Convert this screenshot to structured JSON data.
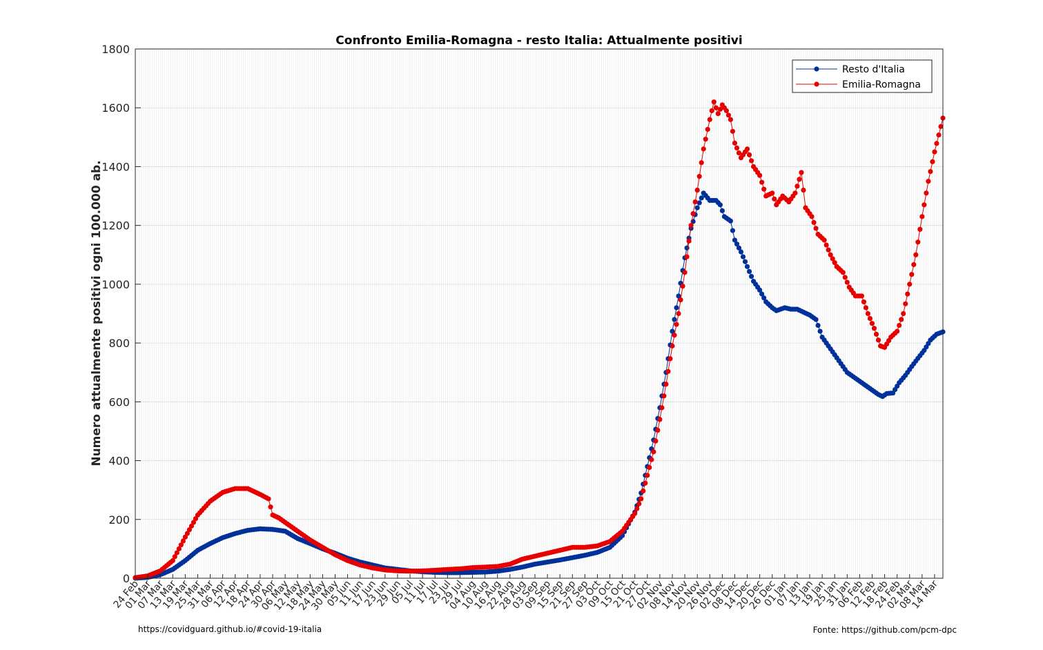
{
  "chart_data": {
    "type": "line",
    "title": "Confronto Emilia-Romagna - resto Italia: Attualmente positivi",
    "xlabel": "",
    "ylabel": "Numero attualmente positivi ogni 100.000 ab.",
    "ylim": [
      0,
      1800
    ],
    "yticks": [
      0,
      200,
      400,
      600,
      800,
      1000,
      1200,
      1400,
      1600,
      1800
    ],
    "grid": true,
    "legend_position": "top-right",
    "x_start_date": "2020-02-24",
    "x_end_date": "2021-03-18",
    "x_tick_labels": [
      "24 Feb",
      "01 Mar",
      "07 Mar",
      "13 Mar",
      "19 Mar",
      "25 Mar",
      "31 Mar",
      "06 Apr",
      "12 Apr",
      "18 Apr",
      "24 Apr",
      "30 Apr",
      "06 May",
      "12 May",
      "18 May",
      "24 May",
      "30 May",
      "05 Jun",
      "11 Jun",
      "17 Jun",
      "23 Jun",
      "29 Jun",
      "05 Jul",
      "11 Jul",
      "17 Jul",
      "23 Jul",
      "29 Jul",
      "04 Aug",
      "10 Aug",
      "16 Aug",
      "22 Aug",
      "28 Aug",
      "03 Sep",
      "09 Sep",
      "15 Sep",
      "21 Sep",
      "27 Sep",
      "03 Oct",
      "09 Oct",
      "15 Oct",
      "21 Oct",
      "27 Oct",
      "02 Nov",
      "08 Nov",
      "14 Nov",
      "20 Nov",
      "26 Nov",
      "02 Dec",
      "08 Dec",
      "14 Dec",
      "20 Dec",
      "26 Dec",
      "01 Jan",
      "07 Jan",
      "13 Jan",
      "19 Jan",
      "25 Jan",
      "31 Jan",
      "06 Feb",
      "12 Feb",
      "18 Feb",
      "24 Feb",
      "02 Mar",
      "08 Mar",
      "14 Mar"
    ],
    "series": [
      {
        "name": "Resto d'Italia",
        "color": "#00309a",
        "points": [
          [
            "2020-02-24",
            0
          ],
          [
            "2020-03-01",
            3
          ],
          [
            "2020-03-07",
            12
          ],
          [
            "2020-03-13",
            30
          ],
          [
            "2020-03-19",
            60
          ],
          [
            "2020-03-25",
            95
          ],
          [
            "2020-03-31",
            118
          ],
          [
            "2020-04-06",
            138
          ],
          [
            "2020-04-12",
            152
          ],
          [
            "2020-04-18",
            163
          ],
          [
            "2020-04-24",
            168
          ],
          [
            "2020-04-30",
            166
          ],
          [
            "2020-05-06",
            160
          ],
          [
            "2020-05-12",
            135
          ],
          [
            "2020-05-18",
            118
          ],
          [
            "2020-05-24",
            100
          ],
          [
            "2020-05-30",
            85
          ],
          [
            "2020-06-05",
            68
          ],
          [
            "2020-06-11",
            55
          ],
          [
            "2020-06-17",
            45
          ],
          [
            "2020-06-23",
            35
          ],
          [
            "2020-06-29",
            30
          ],
          [
            "2020-07-05",
            25
          ],
          [
            "2020-07-11",
            22
          ],
          [
            "2020-07-17",
            20
          ],
          [
            "2020-07-23",
            19
          ],
          [
            "2020-07-29",
            19
          ],
          [
            "2020-08-04",
            20
          ],
          [
            "2020-08-10",
            21
          ],
          [
            "2020-08-16",
            24
          ],
          [
            "2020-08-22",
            30
          ],
          [
            "2020-08-28",
            38
          ],
          [
            "2020-09-03",
            48
          ],
          [
            "2020-09-09",
            55
          ],
          [
            "2020-09-15",
            62
          ],
          [
            "2020-09-21",
            70
          ],
          [
            "2020-09-27",
            78
          ],
          [
            "2020-10-03",
            88
          ],
          [
            "2020-10-09",
            105
          ],
          [
            "2020-10-15",
            145
          ],
          [
            "2020-10-21",
            225
          ],
          [
            "2020-10-24",
            290
          ],
          [
            "2020-10-27",
            380
          ],
          [
            "2020-10-30",
            470
          ],
          [
            "2020-11-02",
            580
          ],
          [
            "2020-11-05",
            700
          ],
          [
            "2020-11-08",
            840
          ],
          [
            "2020-11-11",
            960
          ],
          [
            "2020-11-14",
            1090
          ],
          [
            "2020-11-17",
            1190
          ],
          [
            "2020-11-20",
            1260
          ],
          [
            "2020-11-23",
            1310
          ],
          [
            "2020-11-26",
            1285
          ],
          [
            "2020-11-29",
            1285
          ],
          [
            "2020-12-01",
            1270
          ],
          [
            "2020-12-03",
            1230
          ],
          [
            "2020-12-06",
            1215
          ],
          [
            "2020-12-08",
            1150
          ],
          [
            "2020-12-11",
            1110
          ],
          [
            "2020-12-14",
            1060
          ],
          [
            "2020-12-17",
            1010
          ],
          [
            "2020-12-20",
            980
          ],
          [
            "2020-12-23",
            940
          ],
          [
            "2020-12-26",
            920
          ],
          [
            "2020-12-28",
            910
          ],
          [
            "2021-01-01",
            920
          ],
          [
            "2021-01-04",
            915
          ],
          [
            "2021-01-07",
            915
          ],
          [
            "2021-01-10",
            905
          ],
          [
            "2021-01-13",
            895
          ],
          [
            "2021-01-16",
            880
          ],
          [
            "2021-01-19",
            820
          ],
          [
            "2021-01-22",
            790
          ],
          [
            "2021-01-25",
            760
          ],
          [
            "2021-01-28",
            730
          ],
          [
            "2021-01-31",
            700
          ],
          [
            "2021-02-03",
            685
          ],
          [
            "2021-02-06",
            670
          ],
          [
            "2021-02-09",
            655
          ],
          [
            "2021-02-12",
            640
          ],
          [
            "2021-02-15",
            625
          ],
          [
            "2021-02-17",
            618
          ],
          [
            "2021-02-19",
            628
          ],
          [
            "2021-02-22",
            630
          ],
          [
            "2021-02-25",
            665
          ],
          [
            "2021-02-28",
            690
          ],
          [
            "2021-03-03",
            720
          ],
          [
            "2021-03-06",
            748
          ],
          [
            "2021-03-09",
            775
          ],
          [
            "2021-03-12",
            810
          ],
          [
            "2021-03-15",
            830
          ],
          [
            "2021-03-18",
            838
          ]
        ]
      },
      {
        "name": "Emilia-Romagna",
        "color": "#e60000",
        "points": [
          [
            "2020-02-24",
            2
          ],
          [
            "2020-03-01",
            8
          ],
          [
            "2020-03-07",
            25
          ],
          [
            "2020-03-13",
            60
          ],
          [
            "2020-03-19",
            140
          ],
          [
            "2020-03-25",
            215
          ],
          [
            "2020-03-31",
            262
          ],
          [
            "2020-04-06",
            292
          ],
          [
            "2020-04-12",
            305
          ],
          [
            "2020-04-18",
            305
          ],
          [
            "2020-04-24",
            285
          ],
          [
            "2020-04-28",
            270
          ],
          [
            "2020-04-30",
            215
          ],
          [
            "2020-05-03",
            205
          ],
          [
            "2020-05-06",
            190
          ],
          [
            "2020-05-12",
            160
          ],
          [
            "2020-05-18",
            130
          ],
          [
            "2020-05-24",
            105
          ],
          [
            "2020-05-30",
            80
          ],
          [
            "2020-06-05",
            60
          ],
          [
            "2020-06-11",
            45
          ],
          [
            "2020-06-17",
            35
          ],
          [
            "2020-06-23",
            28
          ],
          [
            "2020-06-29",
            25
          ],
          [
            "2020-07-05",
            24
          ],
          [
            "2020-07-11",
            25
          ],
          [
            "2020-07-17",
            27
          ],
          [
            "2020-07-23",
            30
          ],
          [
            "2020-07-29",
            32
          ],
          [
            "2020-08-04",
            36
          ],
          [
            "2020-08-10",
            38
          ],
          [
            "2020-08-16",
            40
          ],
          [
            "2020-08-22",
            48
          ],
          [
            "2020-08-28",
            65
          ],
          [
            "2020-09-03",
            75
          ],
          [
            "2020-09-09",
            85
          ],
          [
            "2020-09-15",
            95
          ],
          [
            "2020-09-21",
            105
          ],
          [
            "2020-09-27",
            105
          ],
          [
            "2020-10-03",
            110
          ],
          [
            "2020-10-09",
            125
          ],
          [
            "2020-10-15",
            160
          ],
          [
            "2020-10-21",
            220
          ],
          [
            "2020-10-24",
            270
          ],
          [
            "2020-10-27",
            350
          ],
          [
            "2020-10-30",
            430
          ],
          [
            "2020-11-02",
            540
          ],
          [
            "2020-11-05",
            660
          ],
          [
            "2020-11-08",
            790
          ],
          [
            "2020-11-11",
            900
          ],
          [
            "2020-11-14",
            1040
          ],
          [
            "2020-11-17",
            1200
          ],
          [
            "2020-11-20",
            1320
          ],
          [
            "2020-11-23",
            1460
          ],
          [
            "2020-11-26",
            1560
          ],
          [
            "2020-11-28",
            1620
          ],
          [
            "2020-11-30",
            1580
          ],
          [
            "2020-12-02",
            1610
          ],
          [
            "2020-12-04",
            1590
          ],
          [
            "2020-12-06",
            1560
          ],
          [
            "2020-12-08",
            1480
          ],
          [
            "2020-12-11",
            1430
          ],
          [
            "2020-12-14",
            1460
          ],
          [
            "2020-12-17",
            1400
          ],
          [
            "2020-12-20",
            1370
          ],
          [
            "2020-12-23",
            1300
          ],
          [
            "2020-12-26",
            1310
          ],
          [
            "2020-12-28",
            1270
          ],
          [
            "2020-12-31",
            1300
          ],
          [
            "2021-01-03",
            1280
          ],
          [
            "2021-01-06",
            1310
          ],
          [
            "2021-01-09",
            1380
          ],
          [
            "2021-01-11",
            1260
          ],
          [
            "2021-01-14",
            1230
          ],
          [
            "2021-01-17",
            1170
          ],
          [
            "2021-01-20",
            1150
          ],
          [
            "2021-01-23",
            1100
          ],
          [
            "2021-01-26",
            1060
          ],
          [
            "2021-01-29",
            1040
          ],
          [
            "2021-02-01",
            990
          ],
          [
            "2021-02-04",
            960
          ],
          [
            "2021-02-07",
            960
          ],
          [
            "2021-02-10",
            900
          ],
          [
            "2021-02-13",
            850
          ],
          [
            "2021-02-16",
            790
          ],
          [
            "2021-02-18",
            785
          ],
          [
            "2021-02-21",
            820
          ],
          [
            "2021-02-24",
            840
          ],
          [
            "2021-02-27",
            900
          ],
          [
            "2021-03-02",
            1000
          ],
          [
            "2021-03-05",
            1100
          ],
          [
            "2021-03-08",
            1230
          ],
          [
            "2021-03-11",
            1350
          ],
          [
            "2021-03-14",
            1450
          ],
          [
            "2021-03-18",
            1565
          ]
        ]
      }
    ]
  },
  "footer": {
    "left": "https://covidguard.github.io/#covid-19-italia",
    "right": "Fonte: https://github.com/pcm-dpc"
  }
}
